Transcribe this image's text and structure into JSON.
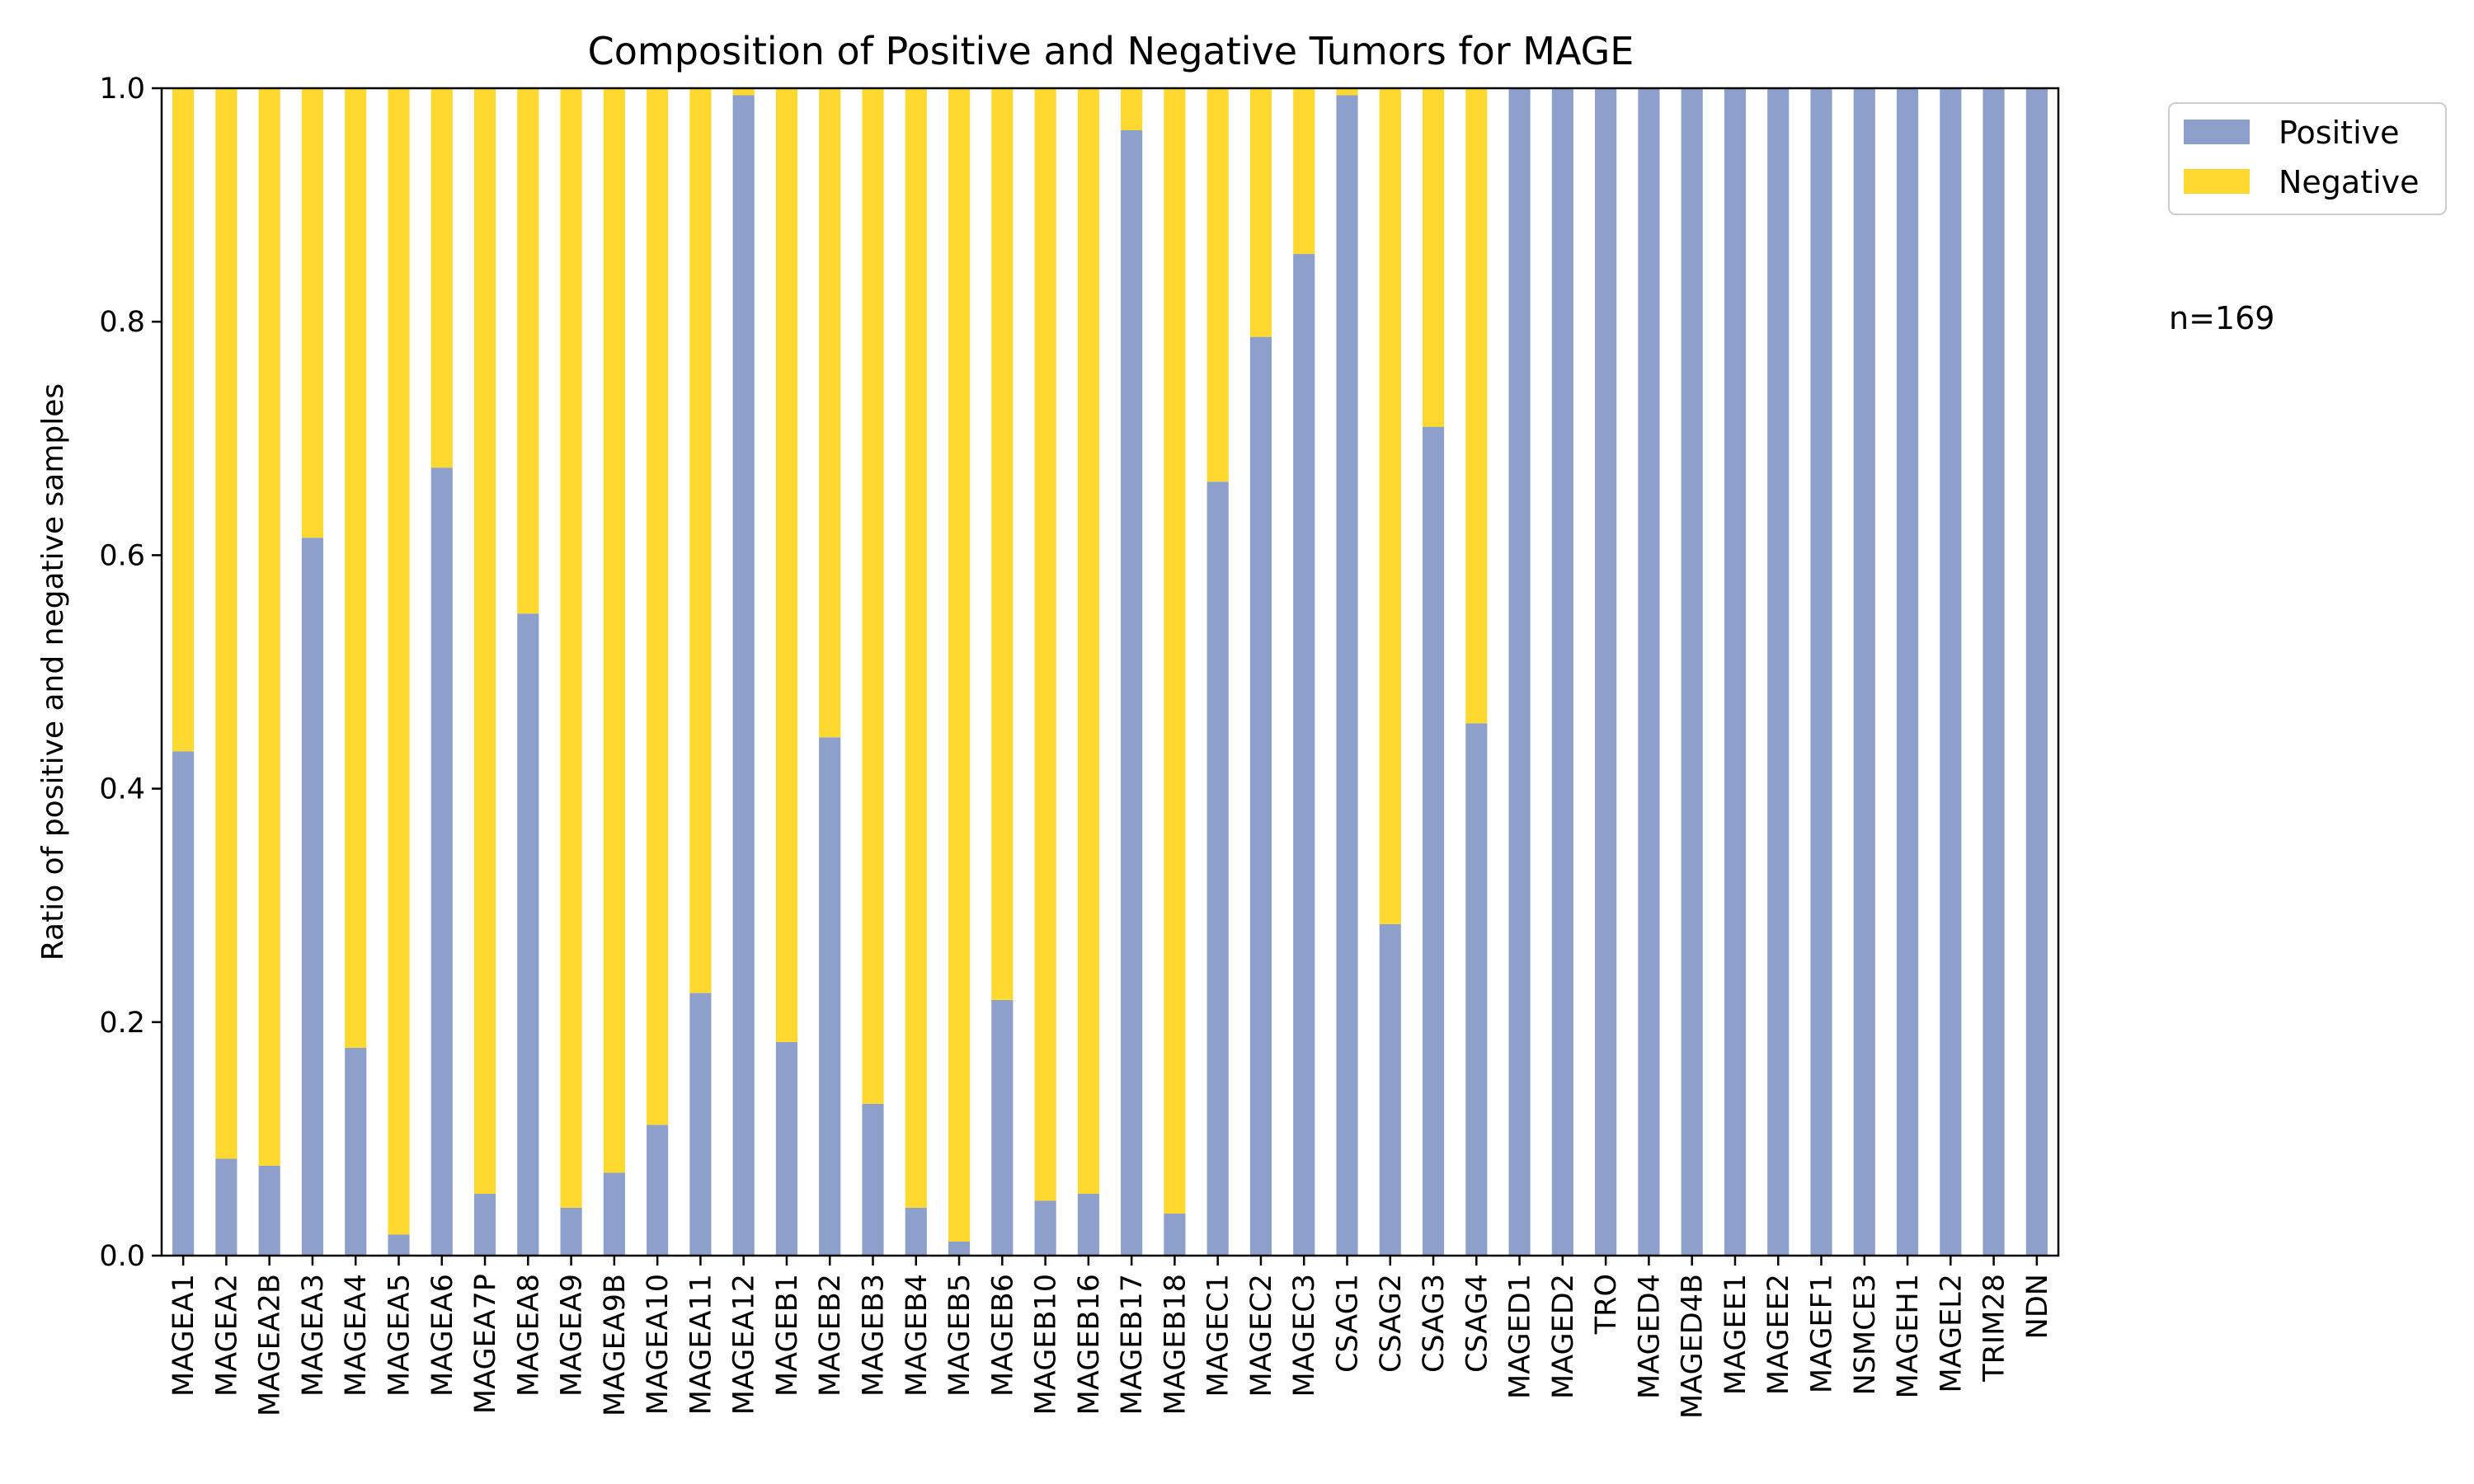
{
  "chart_data": {
    "type": "bar",
    "stacked": true,
    "title": "Composition of Positive and Negative Tumors for MAGE",
    "xlabel": "",
    "ylabel": "Ratio of positive and negative samples",
    "ylim": [
      0,
      1.0
    ],
    "yticks": [
      "0.0",
      "0.2",
      "0.4",
      "0.6",
      "0.8",
      "1.0"
    ],
    "grid": false,
    "legend_position": "outside-top-right",
    "annotation": "n=169",
    "categories": [
      "MAGEA1",
      "MAGEA2",
      "MAGEA2B",
      "MAGEA3",
      "MAGEA4",
      "MAGEA5",
      "MAGEA6",
      "MAGEA7P",
      "MAGEA8",
      "MAGEA9",
      "MAGEA9B",
      "MAGEA10",
      "MAGEA11",
      "MAGEA12",
      "MAGEB1",
      "MAGEB2",
      "MAGEB3",
      "MAGEB4",
      "MAGEB5",
      "MAGEB6",
      "MAGEB10",
      "MAGEB16",
      "MAGEB17",
      "MAGEB18",
      "MAGEC1",
      "MAGEC2",
      "MAGEC3",
      "CSAG1",
      "CSAG2",
      "CSAG3",
      "CSAG4",
      "MAGED1",
      "MAGED2",
      "TRO",
      "MAGED4",
      "MAGED4B",
      "MAGEE1",
      "MAGEE2",
      "MAGEF1",
      "NSMCE3",
      "MAGEH1",
      "MAGEL2",
      "TRIM28",
      "NDN"
    ],
    "series": [
      {
        "name": "Positive",
        "color": "#8da0cb",
        "values": [
          0.432,
          0.083,
          0.077,
          0.615,
          0.178,
          0.018,
          0.675,
          0.053,
          0.55,
          0.041,
          0.071,
          0.112,
          0.225,
          0.994,
          0.183,
          0.444,
          0.13,
          0.041,
          0.012,
          0.219,
          0.047,
          0.053,
          0.964,
          0.036,
          0.663,
          0.787,
          0.858,
          0.994,
          0.284,
          0.71,
          0.456,
          1.0,
          1.0,
          1.0,
          1.0,
          1.0,
          1.0,
          1.0,
          1.0,
          1.0,
          1.0,
          1.0,
          1.0,
          1.0
        ]
      },
      {
        "name": "Negative",
        "color": "#ffd92f",
        "values": [
          0.568,
          0.917,
          0.923,
          0.385,
          0.822,
          0.982,
          0.325,
          0.947,
          0.45,
          0.959,
          0.929,
          0.888,
          0.775,
          0.006,
          0.817,
          0.556,
          0.87,
          0.959,
          0.988,
          0.781,
          0.953,
          0.947,
          0.036,
          0.964,
          0.337,
          0.213,
          0.142,
          0.006,
          0.716,
          0.29,
          0.544,
          0.0,
          0.0,
          0.0,
          0.0,
          0.0,
          0.0,
          0.0,
          0.0,
          0.0,
          0.0,
          0.0,
          0.0,
          0.0
        ]
      }
    ]
  }
}
